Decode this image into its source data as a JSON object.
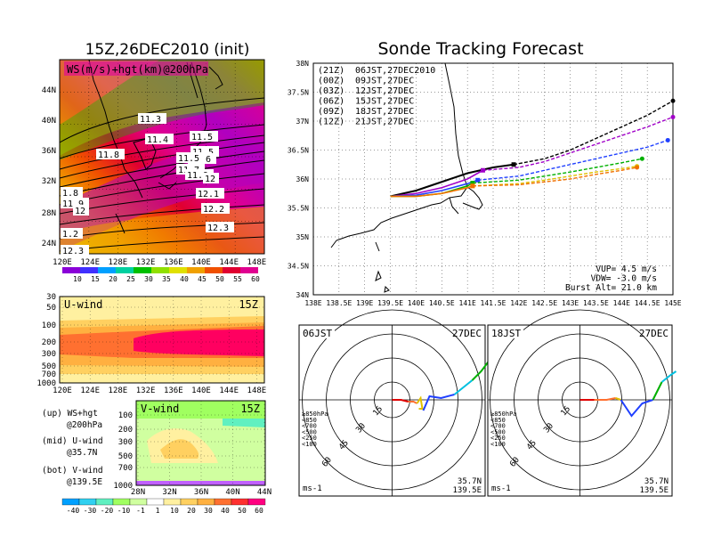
{
  "left_title": "15Z,26DEC2010 (init)",
  "right_title": "Sonde Tracking Forecast",
  "colors": {
    "ws": [
      "#8a00d8",
      "#4030ff",
      "#00a0ff",
      "#00d0a0",
      "#00c000",
      "#90e000",
      "#e0e000",
      "#f0a000",
      "#f05000",
      "#e00030",
      "#e00090"
    ],
    "div": [
      "#00a0ff",
      "#30d0f0",
      "#60f0c0",
      "#a0ff60",
      "#d0ffa0",
      "#ffffff",
      "#fff0a0",
      "#ffd060",
      "#ffb040",
      "#ff7030",
      "#ff3030",
      "#ff0080"
    ],
    "t21": "#000000",
    "t00": "#a000c8",
    "t03": "#2040ff",
    "t06": "#00b000",
    "t09": "#e0c000",
    "t12": "#f07000"
  },
  "map": {
    "label": "WS(m/s)+hgt(km)@200hPa",
    "lat_ticks": [
      "44N",
      "40N",
      "36N",
      "32N",
      "28N",
      "24N"
    ],
    "lon_ticks": [
      "120E",
      "124E",
      "128E",
      "132E",
      "136E",
      "140E",
      "144E",
      "148E"
    ],
    "colorbar": [
      "10",
      "15",
      "20",
      "25",
      "30",
      "35",
      "40",
      "45",
      "50",
      "55",
      "60"
    ],
    "hgt_labels": [
      "11.3",
      "11.4",
      "11.5",
      "11.5",
      "11.6",
      "11.7",
      "11.8",
      "11.9",
      "12",
      "11.5",
      "12.1",
      "12.2",
      "12.3",
      "1.8",
      "11.9",
      "12",
      "1.2",
      "12.3"
    ]
  },
  "uwind": {
    "label": "U-wind",
    "time": "15Z",
    "p_ticks": [
      "30",
      "50",
      "100",
      "200",
      "300",
      "500",
      "700",
      "1000"
    ],
    "lon_ticks": [
      "120E",
      "124E",
      "128E",
      "132E",
      "136E",
      "140E",
      "144E",
      "148E"
    ]
  },
  "vwind": {
    "label": "V-wind",
    "time": "15Z",
    "p_ticks": [
      "100",
      "200",
      "300",
      "500",
      "700",
      "1000"
    ],
    "lat_ticks": [
      "28N",
      "32N",
      "36N",
      "40N",
      "44N"
    ],
    "colorbar": [
      "-40",
      "-30",
      "-20",
      "-10",
      "-1",
      "1",
      "10",
      "20",
      "30",
      "40",
      "50",
      "60"
    ]
  },
  "legend_notes": [
    "(up) WS+hgt",
    "@200hPa",
    "(mid) U-wind",
    "@35.7N",
    "(bot) V-wind",
    "@139.5E"
  ],
  "chart_data": {
    "type": "line",
    "title": "Sonde Tracking Forecast",
    "xlim": [
      138,
      145
    ],
    "ylim": [
      34,
      38
    ],
    "x_ticks": [
      "138E",
      "138.5E",
      "139E",
      "139.5E",
      "140E",
      "140.5E",
      "141E",
      "141.5E",
      "142E",
      "142.5E",
      "143E",
      "143.5E",
      "144E",
      "144.5E",
      "145E"
    ],
    "y_ticks": [
      "38N",
      "37.5N",
      "37N",
      "36.5N",
      "36N",
      "35.5N",
      "35N",
      "34.5N",
      "34N"
    ],
    "grid": true,
    "legend": [
      {
        "code": "(21Z)",
        "time": "06JST,27DEC2010"
      },
      {
        "code": "(00Z)",
        "time": "09JST,27DEC"
      },
      {
        "code": "(03Z)",
        "time": "12JST,27DEC"
      },
      {
        "code": "(06Z)",
        "time": "15JST,27DEC"
      },
      {
        "code": "(09Z)",
        "time": "18JST,27DEC"
      },
      {
        "code": "(12Z)",
        "time": "21JST,27DEC"
      }
    ],
    "series": [
      {
        "name": "(21Z)",
        "x": [
          139.5,
          140,
          140.5,
          141,
          141.5,
          141.9
        ],
        "y": [
          35.7,
          35.8,
          35.95,
          36.1,
          36.2,
          36.25
        ],
        "dx": [
          141.9,
          142.5,
          143,
          143.5,
          144,
          144.5,
          145
        ],
        "dy": [
          36.25,
          36.35,
          36.5,
          36.7,
          36.9,
          37.1,
          37.35
        ]
      },
      {
        "name": "(00Z)",
        "x": [
          139.5,
          140,
          140.5,
          141,
          141.3
        ],
        "y": [
          35.7,
          35.75,
          35.85,
          36.0,
          36.15
        ],
        "dx": [
          141.3,
          142,
          142.5,
          143,
          143.5,
          144,
          144.5,
          145
        ],
        "dy": [
          36.15,
          36.2,
          36.3,
          36.45,
          36.6,
          36.75,
          36.9,
          37.07
        ]
      },
      {
        "name": "(03Z)",
        "x": [
          139.5,
          140,
          140.5,
          141,
          141.2
        ],
        "y": [
          35.7,
          35.72,
          35.8,
          35.92,
          35.98
        ],
        "dx": [
          141.2,
          142,
          142.5,
          143,
          143.5,
          144,
          144.5,
          144.9
        ],
        "dy": [
          35.98,
          36.05,
          36.15,
          36.25,
          36.35,
          36.45,
          36.55,
          36.67
        ]
      },
      {
        "name": "(06Z)",
        "x": [
          139.5,
          140,
          140.5,
          141,
          141.1
        ],
        "y": [
          35.7,
          35.7,
          35.75,
          35.88,
          35.93
        ],
        "dx": [
          141.1,
          142,
          142.5,
          143,
          143.5,
          144,
          144.4
        ],
        "dy": [
          35.93,
          35.98,
          36.05,
          36.12,
          36.2,
          36.28,
          36.35
        ]
      },
      {
        "name": "(09Z)",
        "x": [
          139.5,
          140,
          140.5,
          141,
          141.1
        ],
        "y": [
          35.7,
          35.7,
          35.75,
          35.85,
          35.88
        ],
        "dx": [
          141.1,
          142,
          142.5,
          143,
          143.5,
          144,
          144.3
        ],
        "dy": [
          35.88,
          35.92,
          35.98,
          36.05,
          36.12,
          36.18,
          36.22
        ]
      },
      {
        "name": "(12Z)",
        "x": [
          139.5,
          140,
          140.5,
          141,
          141.1
        ],
        "y": [
          35.7,
          35.7,
          35.75,
          35.85,
          35.88
        ],
        "dx": [
          141.1,
          142,
          142.5,
          143,
          143.5,
          144,
          144.3
        ],
        "dy": [
          35.88,
          35.9,
          35.95,
          36.0,
          36.08,
          36.15,
          36.2
        ]
      }
    ],
    "params": [
      "VUP= 4.5 m/s",
      "VDW= -3.0 m/s",
      "Burst Alt= 21.0 km"
    ]
  },
  "hodo_left": {
    "time": "06JST",
    "date": "27DEC",
    "rings": [
      "15",
      "30",
      "45",
      "60"
    ],
    "loc": [
      "35.7N",
      "139.5E"
    ],
    "unit": "ms-1",
    "levels": [
      {
        "t": "≥850hPa",
        "c": "#e00000"
      },
      {
        "t": "<850",
        "c": "#ff7030"
      },
      {
        "t": "<700",
        "c": "#e0c000"
      },
      {
        "t": "<500",
        "c": "#00b000"
      },
      {
        "t": "<250",
        "c": "#00c0e0"
      },
      {
        "t": "<100",
        "c": "#2040ff"
      }
    ]
  },
  "hodo_right": {
    "time": "18JST",
    "date": "27DEC",
    "rings": [
      "15",
      "30",
      "45",
      "60"
    ],
    "loc": [
      "35.7N",
      "139.5E"
    ],
    "unit": "ms-1",
    "levels": [
      {
        "t": "≥850hPa",
        "c": "#e00000"
      },
      {
        "t": "<850",
        "c": "#ff7030"
      },
      {
        "t": "<700",
        "c": "#e0c000"
      },
      {
        "t": "<500",
        "c": "#00b000"
      },
      {
        "t": "<250",
        "c": "#00c0e0"
      },
      {
        "t": "<100",
        "c": "#2040ff"
      }
    ]
  }
}
